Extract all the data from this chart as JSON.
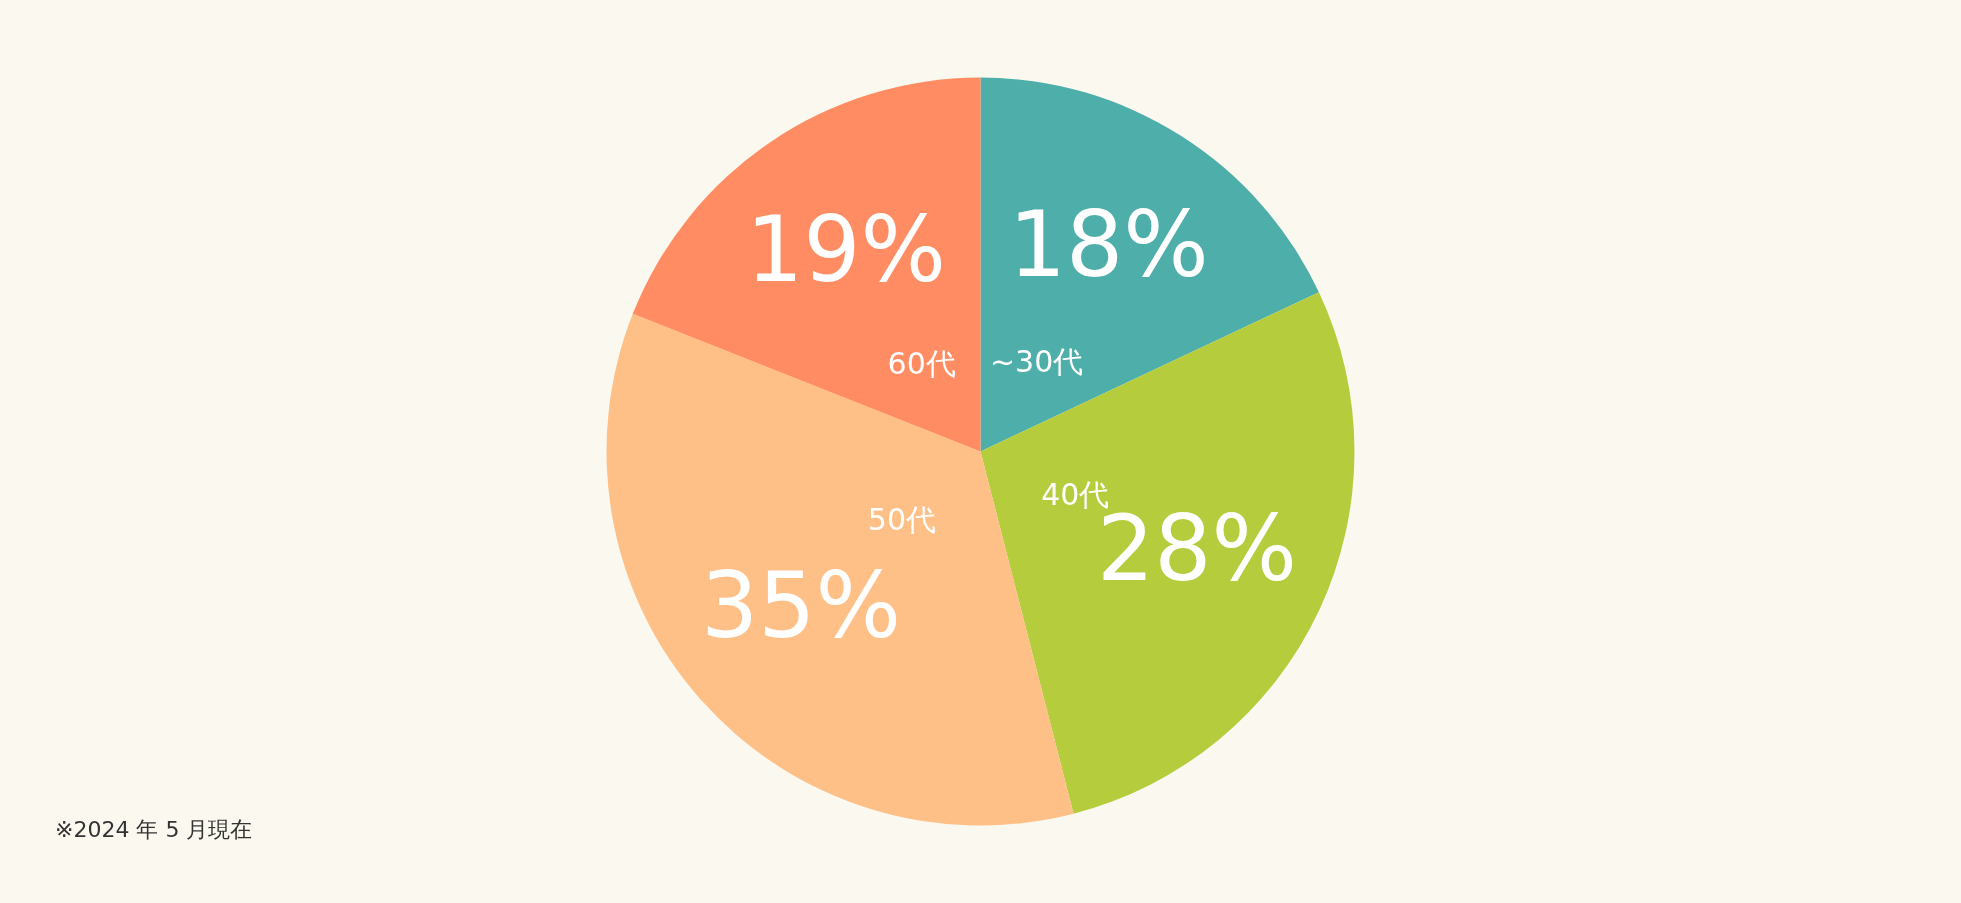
{
  "chart_data": {
    "type": "pie",
    "categories": [
      "~30代",
      "40代",
      "50代",
      "60代"
    ],
    "values": [
      18,
      28,
      35,
      19
    ],
    "colors": [
      "#4eaeaa",
      "#b5cc3c",
      "#ffc088",
      "#ff8c62"
    ],
    "value_labels": [
      "18%",
      "28%",
      "35%",
      "19%"
    ],
    "annotations": [
      "※2024 年 5 月現在"
    ]
  }
}
